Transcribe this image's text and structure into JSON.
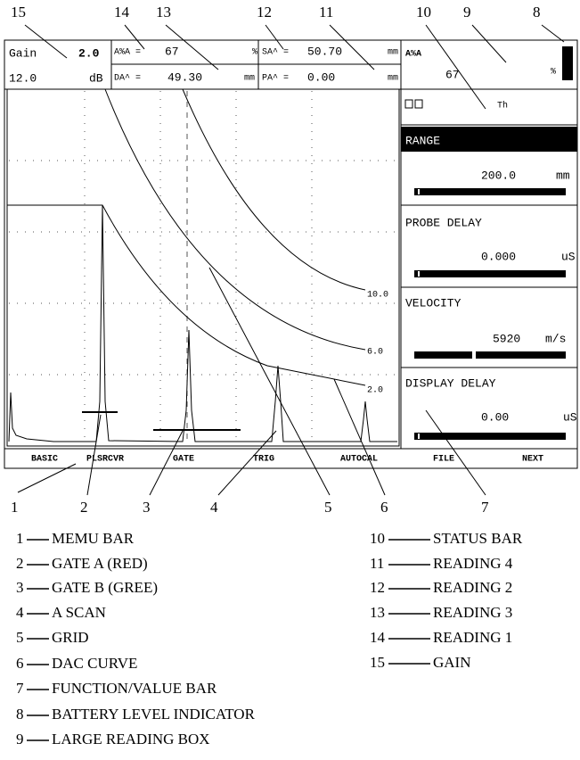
{
  "callouts_top": [
    "15",
    "14",
    "13",
    "12",
    "11",
    "10",
    "9",
    "8"
  ],
  "callouts_bottom": [
    "1",
    "2",
    "3",
    "4",
    "5",
    "6",
    "7"
  ],
  "screen": {
    "gain": {
      "label": "Gain",
      "step": "2.0",
      "value": "12.0",
      "unit": "dB"
    },
    "readings": [
      {
        "label": "A%A =",
        "value": "67",
        "unit": "%"
      },
      {
        "label": "DA^ =",
        "value": "49.30",
        "unit": "mm"
      },
      {
        "label": "SA^ =",
        "value": "50.70",
        "unit": "mm"
      },
      {
        "label": "PA^ =",
        "value": "0.00",
        "unit": "mm"
      }
    ],
    "large_reading": {
      "label": "A%A",
      "value": "67",
      "unit": "%"
    },
    "status": "Th",
    "functions": [
      {
        "label": "RANGE",
        "value": "200.0",
        "unit": "mm"
      },
      {
        "label": "PROBE DELAY",
        "value": "0.000",
        "unit": "uS"
      },
      {
        "label": "VELOCITY",
        "value": "5920",
        "unit": "m/s"
      },
      {
        "label": "DISPLAY DELAY",
        "value": "0.00",
        "unit": "uS"
      }
    ],
    "dac_labels": [
      "10.0",
      "6.0",
      "2.0"
    ],
    "menu": [
      "BASIC",
      "PLSRCVR",
      "GATE",
      "TRIG",
      "AUTOCAL",
      "FILE",
      "NEXT"
    ]
  },
  "legend": [
    {
      "number": "1",
      "label": "MEMU BAR"
    },
    {
      "number": "2",
      "label": "GATE A (RED)"
    },
    {
      "number": "3",
      "label": "GATE B (GREE)"
    },
    {
      "number": "4",
      "label": "A SCAN"
    },
    {
      "number": "5",
      "label": "GRID"
    },
    {
      "number": "6",
      "label": "DAC CURVE"
    },
    {
      "number": "7",
      "label": "FUNCTION/VALUE BAR"
    },
    {
      "number": "8",
      "label": "BATTERY LEVEL INDICATOR"
    },
    {
      "number": "9",
      "label": "LARGE READING BOX"
    },
    {
      "number": "10",
      "label": "STATUS BAR"
    },
    {
      "number": "11",
      "label": "READING 4"
    },
    {
      "number": "12",
      "label": "READING 2"
    },
    {
      "number": "13",
      "label": "READING 3"
    },
    {
      "number": "14",
      "label": "READING 1"
    },
    {
      "number": "15",
      "label": "GAIN"
    }
  ]
}
